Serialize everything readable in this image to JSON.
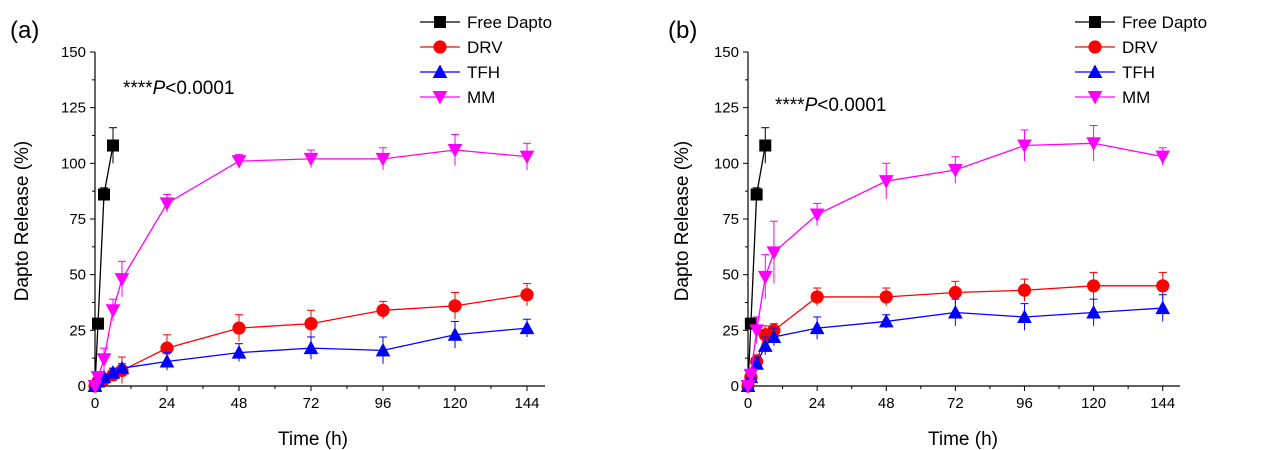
{
  "colors": {
    "Free Dapto": "#000000",
    "DRV": "#ff0000",
    "TFH": "#0000ff",
    "MM": "#ff00ff"
  },
  "markers": {
    "Free Dapto": "square",
    "DRV": "circle",
    "TFH": "triangle-up",
    "MM": "triangle-down"
  },
  "chart_data": [
    {
      "type": "line",
      "panel_label": "(a)",
      "annotation": {
        "stars": "****",
        "p_symbol": "P",
        "relation": "<0.0001"
      },
      "xlabel": "Time (h)",
      "ylabel": "Dapto Release (%)",
      "xlim": [
        0,
        150
      ],
      "ylim": [
        0,
        150
      ],
      "xticks": [
        0,
        24,
        48,
        72,
        96,
        120,
        144
      ],
      "yticks": [
        0,
        25,
        50,
        75,
        100,
        125,
        150
      ],
      "legend": "top-right",
      "grid": false,
      "series": [
        {
          "name": "Free Dapto",
          "x": [
            0,
            1,
            3,
            6
          ],
          "y": [
            0,
            28,
            86,
            108
          ],
          "err": [
            0,
            2,
            3,
            8
          ]
        },
        {
          "name": "DRV",
          "x": [
            0,
            1,
            3,
            6,
            9,
            24,
            48,
            72,
            96,
            120,
            144
          ],
          "y": [
            0,
            2,
            3,
            5,
            7,
            17,
            26,
            28,
            34,
            36,
            41
          ],
          "err": [
            0,
            1,
            1,
            3,
            6,
            6,
            6,
            6,
            4,
            6,
            5
          ]
        },
        {
          "name": "TFH",
          "x": [
            0,
            1,
            3,
            6,
            9,
            24,
            48,
            72,
            96,
            120,
            144
          ],
          "y": [
            0,
            2,
            4,
            6,
            8,
            11,
            15,
            17,
            16,
            23,
            26
          ],
          "err": [
            0,
            1,
            1,
            2,
            2,
            4,
            4,
            5,
            6,
            6,
            4
          ]
        },
        {
          "name": "MM",
          "x": [
            0,
            1,
            3,
            6,
            9,
            24,
            48,
            72,
            96,
            120,
            144
          ],
          "y": [
            0,
            4,
            12,
            34,
            48,
            82,
            101,
            102,
            102,
            106,
            103
          ],
          "err": [
            0,
            2,
            5,
            5,
            8,
            4,
            3,
            4,
            5,
            7,
            6
          ]
        }
      ]
    },
    {
      "type": "line",
      "panel_label": "(b)",
      "annotation": {
        "stars": "****",
        "p_symbol": "P",
        "relation": "<0.0001"
      },
      "xlabel": "Time (h)",
      "ylabel": "Dapto Release (%)",
      "xlim": [
        0,
        150
      ],
      "ylim": [
        0,
        150
      ],
      "xticks": [
        0,
        24,
        48,
        72,
        96,
        120,
        144
      ],
      "yticks": [
        0,
        25,
        50,
        75,
        100,
        125,
        150
      ],
      "legend": "top-right",
      "grid": false,
      "series": [
        {
          "name": "Free Dapto",
          "x": [
            0,
            1,
            3,
            6
          ],
          "y": [
            0,
            28,
            86,
            108
          ],
          "err": [
            0,
            2,
            3,
            8
          ]
        },
        {
          "name": "DRV",
          "x": [
            0,
            1,
            3,
            6,
            9,
            24,
            48,
            72,
            96,
            120,
            144
          ],
          "y": [
            0,
            4,
            11,
            23,
            25,
            40,
            40,
            42,
            43,
            45,
            45
          ],
          "err": [
            0,
            2,
            3,
            4,
            3,
            4,
            4,
            5,
            5,
            6,
            6
          ]
        },
        {
          "name": "TFH",
          "x": [
            0,
            1,
            3,
            6,
            9,
            24,
            48,
            72,
            96,
            120,
            144
          ],
          "y": [
            0,
            4,
            10,
            18,
            22,
            26,
            29,
            33,
            31,
            33,
            35
          ],
          "err": [
            0,
            2,
            3,
            4,
            4,
            5,
            3,
            6,
            6,
            6,
            6
          ]
        },
        {
          "name": "MM",
          "x": [
            0,
            1,
            3,
            6,
            9,
            24,
            48,
            72,
            96,
            120,
            144
          ],
          "y": [
            0,
            5,
            25,
            49,
            60,
            77,
            92,
            97,
            108,
            109,
            103
          ],
          "err": [
            0,
            3,
            6,
            10,
            14,
            5,
            8,
            6,
            7,
            8,
            4
          ]
        }
      ]
    }
  ]
}
